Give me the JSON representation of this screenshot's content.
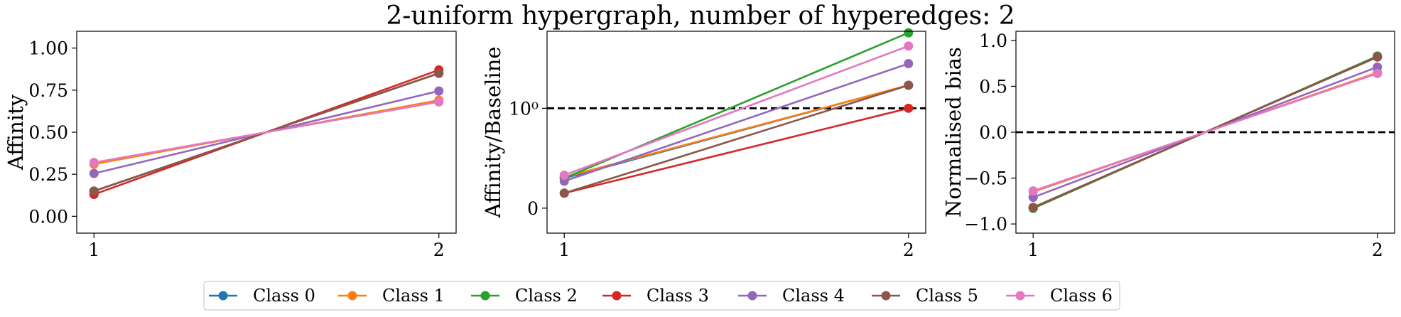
{
  "chart_data": [
    {
      "type": "line",
      "title": "2-uniform hypergraph, number of hyperedges: 2",
      "xlabel": "",
      "ylabel": "Affinity",
      "x": [
        1,
        2
      ],
      "xlim": [
        0.95,
        2.05
      ],
      "ylim": [
        -0.1,
        1.1
      ],
      "yticks": [
        0.0,
        0.25,
        0.5,
        0.75,
        1.0
      ],
      "ytick_labels": [
        "0.00",
        "0.25",
        "0.50",
        "0.75",
        "1.00"
      ],
      "xtick_labels": [
        "1",
        "2"
      ],
      "grid": false,
      "series": [
        {
          "name": "Class 0",
          "values": [
            0.15,
            0.85
          ]
        },
        {
          "name": "Class 1",
          "values": [
            0.31,
            0.69
          ]
        },
        {
          "name": "Class 2",
          "values": [
            0.15,
            0.85
          ]
        },
        {
          "name": "Class 3",
          "values": [
            0.13,
            0.87
          ]
        },
        {
          "name": "Class 4",
          "values": [
            0.255,
            0.745
          ]
        },
        {
          "name": "Class 5",
          "values": [
            0.15,
            0.85
          ]
        },
        {
          "name": "Class 6",
          "values": [
            0.32,
            0.68
          ]
        }
      ]
    },
    {
      "type": "line",
      "title": "",
      "xlabel": "",
      "ylabel": "Affinity/Baseline",
      "x": [
        1,
        2
      ],
      "xlim": [
        0.95,
        2.05
      ],
      "yscale": "symlog",
      "ylim": [
        -0.25,
        5.9
      ],
      "ytick_labels": [
        "0",
        "10⁰"
      ],
      "reference_line": {
        "y": 1,
        "style": "dashed",
        "color": "#000000"
      },
      "xtick_labels": [
        "1",
        "2"
      ],
      "grid": false,
      "series": [
        {
          "name": "Class 0",
          "values": [
            0.3,
            1.7
          ]
        },
        {
          "name": "Class 1",
          "values": [
            0.31,
            1.7
          ]
        },
        {
          "name": "Class 2",
          "values": [
            0.3,
            5.7
          ]
        },
        {
          "name": "Class 3",
          "values": [
            0.15,
            1.0
          ]
        },
        {
          "name": "Class 4",
          "values": [
            0.27,
            2.8
          ]
        },
        {
          "name": "Class 5",
          "values": [
            0.15,
            1.7
          ]
        },
        {
          "name": "Class 6",
          "values": [
            0.33,
            4.2
          ]
        }
      ]
    },
    {
      "type": "line",
      "title": "",
      "xlabel": "",
      "ylabel": "Normalised bias",
      "x": [
        1,
        2
      ],
      "xlim": [
        0.95,
        2.05
      ],
      "ylim": [
        -1.1,
        1.1
      ],
      "yticks": [
        -1.0,
        -0.5,
        0.0,
        0.5,
        1.0
      ],
      "ytick_labels": [
        "−1.0",
        "−0.5",
        "0.0",
        "0.5",
        "1.0"
      ],
      "reference_line": {
        "y": 0,
        "style": "dashed",
        "color": "#000000"
      },
      "xtick_labels": [
        "1",
        "2"
      ],
      "grid": false,
      "series": [
        {
          "name": "Class 0",
          "values": [
            -0.82,
            0.82
          ]
        },
        {
          "name": "Class 1",
          "values": [
            -0.65,
            0.65
          ]
        },
        {
          "name": "Class 2",
          "values": [
            -0.83,
            0.83
          ]
        },
        {
          "name": "Class 3",
          "values": [
            -0.82,
            0.82
          ]
        },
        {
          "name": "Class 4",
          "values": [
            -0.71,
            0.71
          ]
        },
        {
          "name": "Class 5",
          "values": [
            -0.82,
            0.82
          ]
        },
        {
          "name": "Class 6",
          "values": [
            -0.64,
            0.64
          ]
        }
      ]
    }
  ],
  "legend": {
    "placement": "bottom-center",
    "entries": [
      "Class 0",
      "Class 1",
      "Class 2",
      "Class 3",
      "Class 4",
      "Class 5",
      "Class 6"
    ],
    "colors": [
      "#1f77b4",
      "#ff7f0e",
      "#2ca02c",
      "#d62728",
      "#9467bd",
      "#8c564b",
      "#e377c2"
    ]
  }
}
